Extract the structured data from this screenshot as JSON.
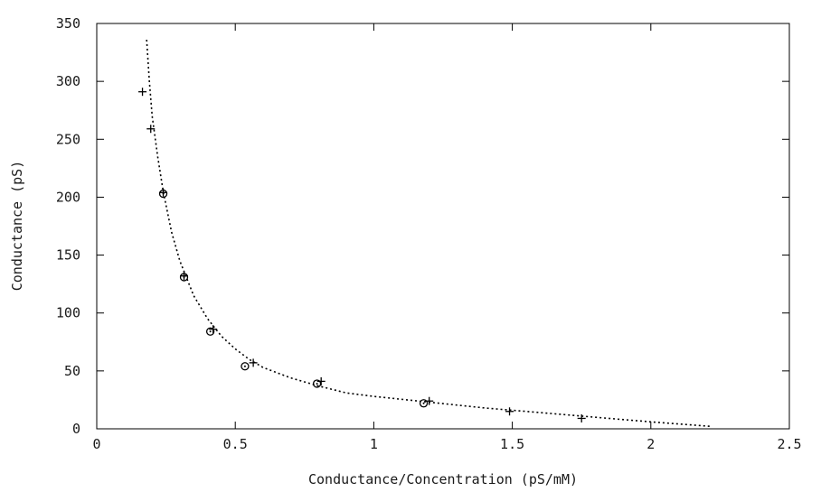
{
  "chart_data": {
    "type": "scatter",
    "title": "",
    "xlabel": "Conductance/Concentration (pS/mM)",
    "ylabel": "Conductance (pS)",
    "xlim": [
      0,
      2.5
    ],
    "ylim": [
      0,
      350
    ],
    "xticks": [
      0,
      0.5,
      1,
      1.5,
      2,
      2.5
    ],
    "xtick_labels": [
      "0",
      "0.5",
      "1",
      "1.5",
      "2",
      "2.5"
    ],
    "yticks": [
      0,
      50,
      100,
      150,
      200,
      250,
      300,
      350
    ],
    "ytick_labels": [
      "0",
      "50",
      "100",
      "150",
      "200",
      "250",
      "300",
      "350"
    ],
    "grid": false,
    "legend": "none",
    "series": [
      {
        "marker": "plus",
        "points": [
          [
            0.165,
            291
          ],
          [
            0.195,
            259
          ],
          [
            0.24,
            204
          ],
          [
            0.315,
            132
          ],
          [
            0.42,
            86
          ],
          [
            0.565,
            57
          ],
          [
            0.81,
            41
          ],
          [
            1.2,
            24
          ],
          [
            1.49,
            15
          ],
          [
            1.75,
            9
          ]
        ]
      },
      {
        "marker": "circle",
        "points": [
          [
            0.24,
            203
          ],
          [
            0.315,
            131
          ],
          [
            0.41,
            84
          ],
          [
            0.535,
            54
          ],
          [
            0.795,
            39
          ],
          [
            1.18,
            22
          ]
        ]
      },
      {
        "style": "dotted-line",
        "points": [
          [
            0.18,
            336
          ],
          [
            0.19,
            300
          ],
          [
            0.2,
            270
          ],
          [
            0.22,
            235
          ],
          [
            0.24,
            205
          ],
          [
            0.27,
            170
          ],
          [
            0.3,
            145
          ],
          [
            0.35,
            115
          ],
          [
            0.4,
            95
          ],
          [
            0.45,
            80
          ],
          [
            0.5,
            69
          ],
          [
            0.55,
            60
          ],
          [
            0.6,
            53
          ],
          [
            0.7,
            44
          ],
          [
            0.8,
            37
          ],
          [
            0.9,
            31
          ],
          [
            1.0,
            28
          ],
          [
            1.2,
            23
          ],
          [
            1.4,
            18
          ],
          [
            1.6,
            14
          ],
          [
            1.8,
            10
          ],
          [
            2.0,
            6
          ],
          [
            2.22,
            2
          ]
        ]
      }
    ]
  }
}
